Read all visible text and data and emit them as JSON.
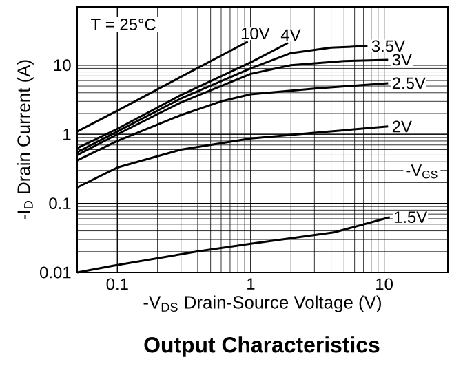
{
  "chart_data": {
    "type": "line",
    "title": "Output Characteristics",
    "xlabel": "-V$_{DS}$ Drain-Source Voltage (V)",
    "ylabel": "-I$_{D}$ Drain Current (A)",
    "log": "xy",
    "grid": true,
    "legend": false,
    "marker": "none",
    "line_style": "solid",
    "xlim": [
      0.05,
      30
    ],
    "ylim": [
      0.01,
      70
    ],
    "xticks": [
      0.1,
      1,
      10
    ],
    "yticks": [
      0.01,
      0.1,
      1,
      10
    ],
    "annotations": [
      "T = 25°C",
      "-V$_{GS}$"
    ],
    "series": [
      {
        "name": "10V",
        "color": "#000000",
        "x": [
          0.05,
          0.1,
          0.3,
          0.95
        ],
        "values": [
          1.1,
          2.2,
          6.8,
          22
        ]
      },
      {
        "name": "4V",
        "color": "#000000",
        "x": [
          0.05,
          0.1,
          0.3,
          1,
          1.9
        ],
        "values": [
          0.63,
          1.2,
          3.7,
          11,
          21
        ]
      },
      {
        "name": "3.5V",
        "color": "#000000",
        "x": [
          0.05,
          0.1,
          0.3,
          1,
          2,
          4,
          7.5
        ],
        "values": [
          0.55,
          1.1,
          3.3,
          9,
          15,
          18,
          19
        ]
      },
      {
        "name": "3V",
        "color": "#000000",
        "x": [
          0.05,
          0.1,
          0.3,
          1,
          2,
          5,
          10.7
        ],
        "values": [
          0.5,
          1,
          2.9,
          7.5,
          10,
          11.5,
          12
        ]
      },
      {
        "name": "2.5V",
        "color": "#000000",
        "x": [
          0.05,
          0.1,
          0.3,
          0.6,
          1,
          3,
          10.7
        ],
        "values": [
          0.42,
          0.8,
          1.9,
          3,
          3.8,
          4.6,
          5.5
        ]
      },
      {
        "name": "2V",
        "color": "#000000",
        "x": [
          0.05,
          0.1,
          0.3,
          1,
          3,
          10.7
        ],
        "values": [
          0.17,
          0.33,
          0.6,
          0.87,
          1.05,
          1.3
        ]
      },
      {
        "name": "1.5V",
        "color": "#000000",
        "x": [
          0.05,
          0.093,
          0.39,
          1,
          4.2,
          11
        ],
        "values": [
          0.01,
          0.0125,
          0.02,
          0.026,
          0.038,
          0.063
        ]
      }
    ]
  }
}
